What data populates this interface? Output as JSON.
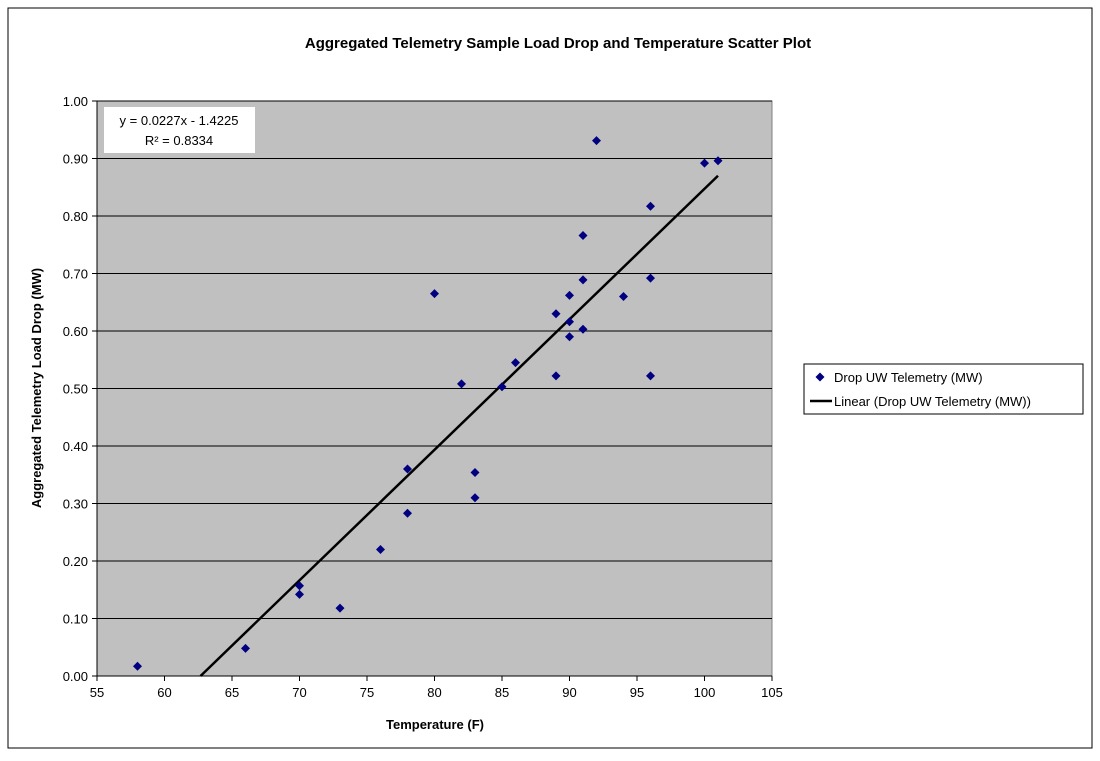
{
  "chart_data": {
    "type": "scatter",
    "title": "Aggregated Telemetry Sample Load Drop and Temperature Scatter Plot",
    "xlabel": "Temperature (F)",
    "ylabel": "Aggregated Telemetry Load Drop (MW)",
    "xlim": [
      55,
      105
    ],
    "xticks": [
      55,
      60,
      65,
      70,
      75,
      80,
      85,
      90,
      95,
      100,
      105
    ],
    "ylim": [
      0,
      1
    ],
    "yticks": [
      {
        "value": 0,
        "label": "0.00"
      },
      {
        "value": 0.1,
        "label": "0.10"
      },
      {
        "value": 0.2,
        "label": "0.20"
      },
      {
        "value": 0.3,
        "label": "0.30"
      },
      {
        "value": 0.4,
        "label": "0.40"
      },
      {
        "value": 0.5,
        "label": "0.50"
      },
      {
        "value": 0.6,
        "label": "0.60"
      },
      {
        "value": 0.7,
        "label": "0.70"
      },
      {
        "value": 0.8,
        "label": "0.80"
      },
      {
        "value": 0.9,
        "label": "0.90"
      },
      {
        "value": 1,
        "label": "1.00"
      }
    ],
    "grid": true,
    "plot_background": "#c0c0c0",
    "legend_position": "right",
    "series": [
      {
        "name": "Drop UW Telemetry (MW)",
        "color": "#000080",
        "x": [
          58,
          66,
          70,
          70,
          73,
          76,
          78,
          78,
          80,
          82,
          83,
          83,
          85,
          86,
          89,
          89,
          90,
          90,
          90,
          91,
          91,
          91,
          92,
          94,
          96,
          96,
          96,
          100,
          101
        ],
        "values": [
          0.017,
          0.048,
          0.157,
          0.142,
          0.118,
          0.22,
          0.36,
          0.283,
          0.665,
          0.508,
          0.354,
          0.31,
          0.503,
          0.545,
          0.63,
          0.522,
          0.662,
          0.616,
          0.59,
          0.766,
          0.689,
          0.603,
          0.931,
          0.66,
          0.817,
          0.692,
          0.522,
          0.892,
          0.896
        ]
      }
    ],
    "trendline": {
      "name": "Linear (Drop UW Telemetry (MW))",
      "color": "#000000",
      "x": [
        62.67,
        101
      ],
      "values": [
        0,
        0.87
      ],
      "equation": "y = 0.0227x - 1.4225",
      "r_squared": "R² = 0.8334"
    }
  }
}
